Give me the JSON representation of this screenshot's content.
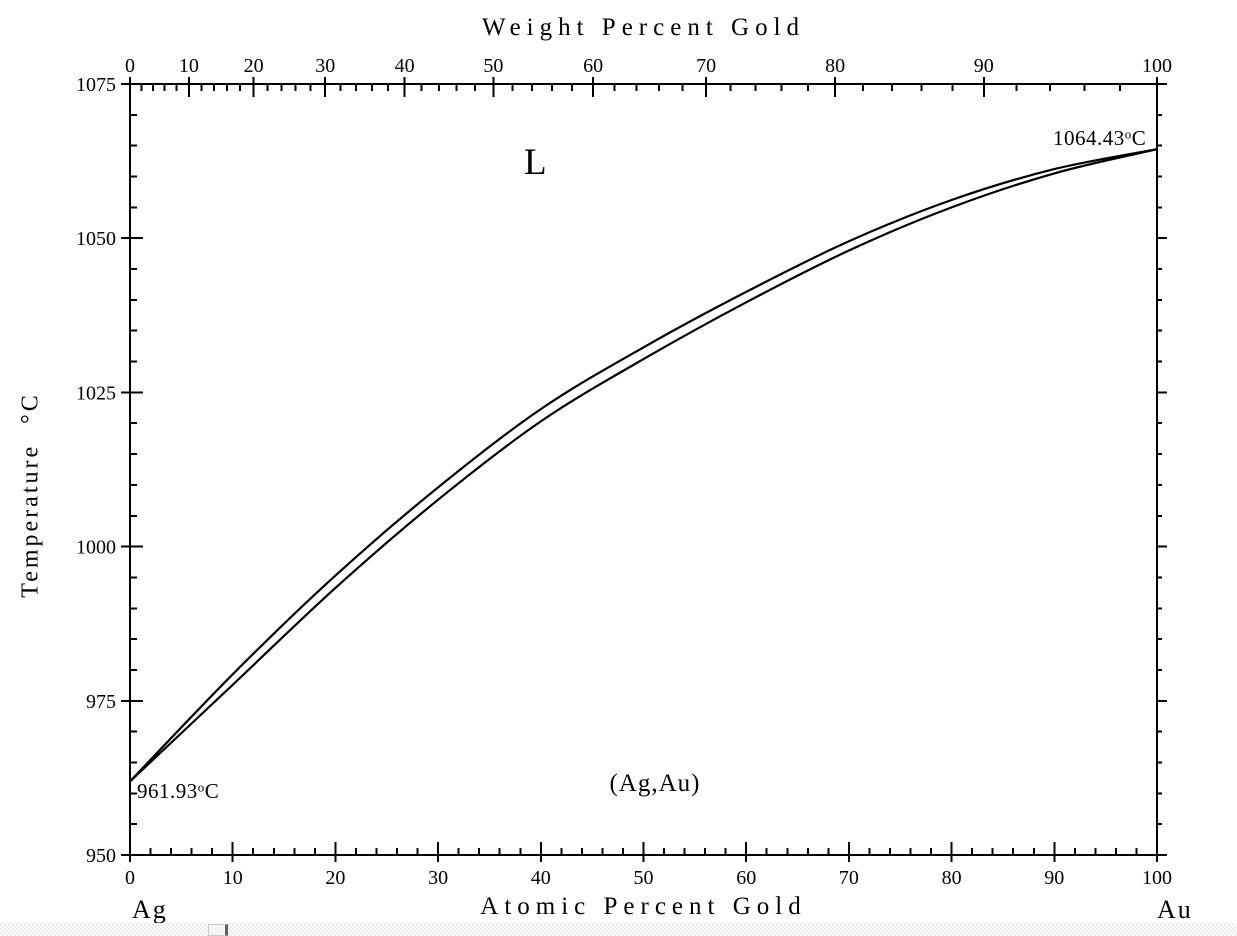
{
  "colors": {
    "line": "#000000",
    "background": "#ffffff",
    "scrollbar_track": "#ededed",
    "scrollbar_thumb": "#f4f4f4"
  },
  "chart_data": {
    "type": "line",
    "top_axis": {
      "title": "Weight Percent Gold",
      "tick_labels": [
        "0",
        "10",
        "20",
        "30",
        "40",
        "50",
        "60",
        "70",
        "80",
        "90",
        "100"
      ],
      "tick_values_wt": [
        0,
        10,
        20,
        30,
        40,
        50,
        60,
        70,
        80,
        90,
        100
      ],
      "minor_step_wt": 2
    },
    "bottom_axis": {
      "title": "Atomic Percent Gold",
      "tick_labels": [
        "0",
        "10",
        "20",
        "30",
        "40",
        "50",
        "60",
        "70",
        "80",
        "90",
        "100"
      ],
      "tick_values": [
        0,
        10,
        20,
        30,
        40,
        50,
        60,
        70,
        80,
        90,
        100
      ],
      "minor_step": 2,
      "range": [
        0,
        100
      ]
    },
    "left_axis": {
      "label_main": "Temperature",
      "label_unit": "°C",
      "tick_labels": [
        "950",
        "975",
        "1000",
        "1025",
        "1050",
        "1075"
      ],
      "tick_values": [
        950,
        975,
        1000,
        1025,
        1050,
        1075
      ],
      "minor_step": 5,
      "range": [
        950,
        1075
      ]
    },
    "series": [
      {
        "name": "liquidus",
        "x": [
          0,
          10,
          20,
          30,
          40,
          50,
          60,
          70,
          80,
          90,
          100
        ],
        "y": [
          961.93,
          979.3,
          995.3,
          1009.6,
          1022.3,
          1032.3,
          1041.3,
          1049.5,
          1056.2,
          1061.2,
          1064.43
        ]
      },
      {
        "name": "solidus",
        "x": [
          0,
          10,
          20,
          30,
          40,
          50,
          60,
          70,
          80,
          90,
          100
        ],
        "y": [
          961.93,
          977.6,
          993.3,
          1007.6,
          1020.3,
          1030.4,
          1039.6,
          1048.0,
          1055.0,
          1060.5,
          1064.43
        ]
      }
    ],
    "annotations": [
      {
        "name": "ag-melting-point",
        "value": "961.93",
        "degree": "o",
        "unit": "C"
      },
      {
        "name": "au-melting-point",
        "value": "1064.43",
        "degree": "o",
        "unit": "C"
      }
    ],
    "region_labels": [
      {
        "name": "liquid-region",
        "text": "L"
      },
      {
        "name": "solid-solution-region",
        "text": "(Ag,Au)"
      }
    ],
    "corner_labels": {
      "left": "Ag",
      "right": "Au"
    }
  }
}
